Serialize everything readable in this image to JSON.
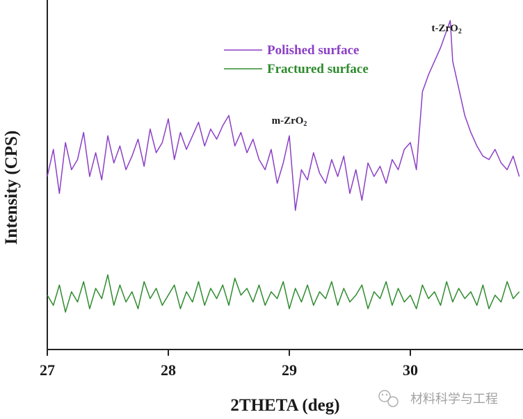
{
  "chart_data": {
    "type": "line",
    "xlabel": "2THETA (deg)",
    "ylabel": "Intensity (CPS)",
    "xlim": [
      27,
      30.9
    ],
    "ylim": [
      0,
      100
    ],
    "xticks": [
      "27",
      "28",
      "29",
      "30"
    ],
    "grid": false,
    "legend_position": "top-center",
    "annotations": [
      {
        "base": "t-ZrO",
        "sub": "2",
        "x": 30.3
      },
      {
        "base": "m-ZrO",
        "sub": "2",
        "x": 29.0
      }
    ],
    "series": [
      {
        "name": "Polished surface",
        "color": "#8b3fc6",
        "x": [
          27.0,
          27.05,
          27.1,
          27.15,
          27.2,
          27.25,
          27.3,
          27.35,
          27.4,
          27.45,
          27.5,
          27.55,
          27.6,
          27.65,
          27.7,
          27.75,
          27.8,
          27.85,
          27.9,
          27.95,
          28.0,
          28.05,
          28.1,
          28.15,
          28.2,
          28.25,
          28.3,
          28.35,
          28.4,
          28.45,
          28.5,
          28.55,
          28.6,
          28.65,
          28.7,
          28.75,
          28.8,
          28.85,
          28.9,
          28.95,
          29.0,
          29.05,
          29.1,
          29.15,
          29.2,
          29.25,
          29.3,
          29.35,
          29.4,
          29.45,
          29.5,
          29.55,
          29.6,
          29.65,
          29.7,
          29.75,
          29.8,
          29.85,
          29.9,
          29.95,
          30.0,
          30.05,
          30.1,
          30.15,
          30.2,
          30.25,
          30.3,
          30.35,
          30.4,
          30.45,
          30.5,
          30.55,
          30.6,
          30.65,
          30.7,
          30.75,
          30.8,
          30.85,
          30.9
        ],
        "values": [
          50,
          58,
          45,
          60,
          52,
          55,
          63,
          50,
          57,
          49,
          62,
          54,
          59,
          52,
          56,
          61,
          53,
          64,
          57,
          60,
          67,
          55,
          63,
          58,
          62,
          66,
          59,
          64,
          61,
          65,
          68,
          59,
          63,
          57,
          61,
          55,
          52,
          58,
          48,
          54,
          62,
          40,
          52,
          49,
          57,
          51,
          48,
          55,
          50,
          56,
          45,
          52,
          43,
          54,
          50,
          53,
          48,
          55,
          52,
          58,
          60,
          52,
          75,
          80,
          84,
          88,
          93,
          84,
          76,
          68,
          63,
          59,
          56,
          55,
          58,
          54,
          52,
          56,
          50
        ],
        "peak_x": [
          30.33
        ],
        "peak_values": [
          96
        ]
      },
      {
        "name": "Fractured surface",
        "color": "#2e8b2e",
        "x": [
          27.0,
          27.05,
          27.1,
          27.15,
          27.2,
          27.25,
          27.3,
          27.35,
          27.4,
          27.45,
          27.5,
          27.55,
          27.6,
          27.65,
          27.7,
          27.75,
          27.8,
          27.85,
          27.9,
          27.95,
          28.0,
          28.05,
          28.1,
          28.15,
          28.2,
          28.25,
          28.3,
          28.35,
          28.4,
          28.45,
          28.5,
          28.55,
          28.6,
          28.65,
          28.7,
          28.75,
          28.8,
          28.85,
          28.9,
          28.95,
          29.0,
          29.05,
          29.1,
          29.15,
          29.2,
          29.25,
          29.3,
          29.35,
          29.4,
          29.45,
          29.5,
          29.55,
          29.6,
          29.65,
          29.7,
          29.75,
          29.8,
          29.85,
          29.9,
          29.95,
          30.0,
          30.05,
          30.1,
          30.15,
          30.2,
          30.25,
          30.3,
          30.35,
          30.4,
          30.45,
          30.5,
          30.55,
          30.6,
          30.65,
          30.7,
          30.75,
          30.8,
          30.85,
          30.9
        ],
        "values": [
          15,
          12,
          18,
          10,
          16,
          13,
          19,
          11,
          17,
          14,
          21,
          12,
          18,
          13,
          16,
          11,
          19,
          14,
          17,
          12,
          15,
          18,
          11,
          16,
          13,
          19,
          12,
          17,
          14,
          18,
          12,
          20,
          15,
          17,
          13,
          18,
          12,
          16,
          14,
          19,
          11,
          17,
          13,
          18,
          12,
          16,
          14,
          19,
          12,
          17,
          13,
          15,
          18,
          11,
          16,
          14,
          19,
          12,
          17,
          13,
          15,
          11,
          18,
          14,
          16,
          12,
          19,
          13,
          17,
          14,
          16,
          12,
          18,
          11,
          15,
          13,
          19,
          14,
          16
        ]
      }
    ]
  },
  "watermark": {
    "icon": "wechat-icon",
    "text": "材料科学与工程"
  }
}
